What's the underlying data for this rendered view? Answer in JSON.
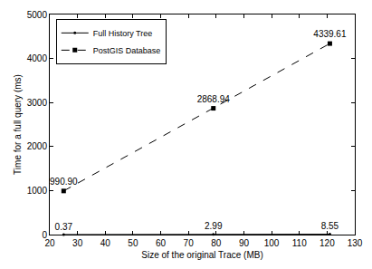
{
  "chart_data": {
    "type": "line",
    "x_label": "Size of the original Trace (MB)",
    "y_label": "Time for a full query (ms)",
    "x": [
      25,
      79,
      121
    ],
    "xlim": [
      20,
      130
    ],
    "xticks": [
      20,
      30,
      40,
      50,
      60,
      70,
      80,
      90,
      100,
      110,
      120,
      130
    ],
    "ylim": [
      0,
      5000
    ],
    "yticks": [
      0,
      1000,
      2000,
      3000,
      4000,
      5000
    ],
    "grid": false,
    "legend": "top-left",
    "data_labels": true,
    "series": [
      {
        "name": "Full History Tree",
        "color": "#000000",
        "line_style": "solid",
        "marker": "circle",
        "values": [
          0.37,
          2.99,
          8.55
        ],
        "value_labels": [
          "0.37",
          "2.99",
          "8.55"
        ]
      },
      {
        "name": "PostGIS Database",
        "color": "#000000",
        "line_style": "dashed",
        "marker": "square",
        "values": [
          990.9,
          2868.94,
          4339.61
        ],
        "value_labels": [
          "990.90",
          "2868.94",
          "4339.61"
        ]
      }
    ]
  }
}
